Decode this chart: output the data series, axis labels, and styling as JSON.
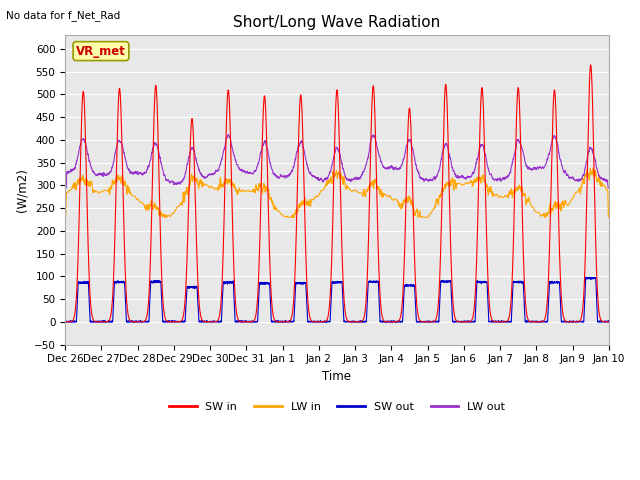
{
  "title": "Short/Long Wave Radiation",
  "xlabel": "Time",
  "ylabel": "(W/m2)",
  "top_left_text": "No data for f_Net_Rad",
  "box_label": "VR_met",
  "ylim": [
    -50,
    630
  ],
  "yticks": [
    -50,
    0,
    50,
    100,
    150,
    200,
    250,
    300,
    350,
    400,
    450,
    500,
    550,
    600
  ],
  "xtick_labels": [
    "Dec 26",
    "Dec 27",
    "Dec 28",
    "Dec 29",
    "Dec 30",
    "Dec 31",
    "Jan 1",
    "Jan 2",
    "Jan 3",
    "Jan 4",
    "Jan 5",
    "Jan 6",
    "Jan 7",
    "Jan 8",
    "Jan 9",
    "Jan 10"
  ],
  "colors": {
    "SW_in": "#FF0000",
    "LW_in": "#FFA500",
    "SW_out": "#0000CD",
    "LW_out": "#9932CC"
  },
  "line_width": 0.8,
  "title_fontsize": 11,
  "label_fontsize": 8.5,
  "tick_fontsize": 7.5
}
